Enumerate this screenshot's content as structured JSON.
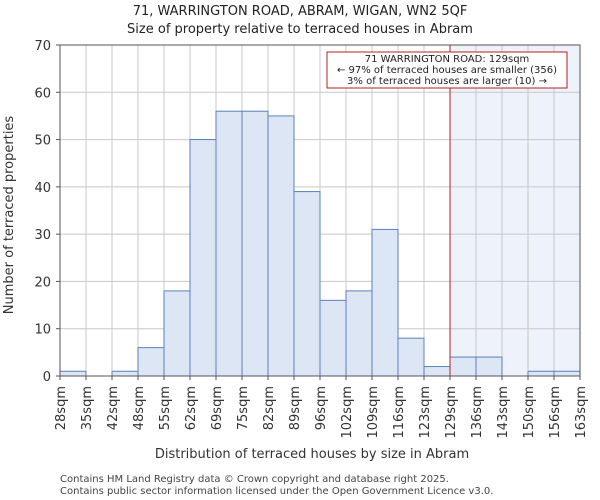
{
  "chart_data": {
    "type": "bar",
    "title": [
      "71, WARRINGTON ROAD, ABRAM, WIGAN, WN2 5QF",
      "Size of property relative to terraced houses in Abram"
    ],
    "xlabel": "Distribution of terraced houses by size in Abram",
    "ylabel": "Number of terraced properties",
    "ylim": [
      0,
      70
    ],
    "yticks": [
      0,
      10,
      20,
      30,
      40,
      50,
      60,
      70
    ],
    "xtick_labels": [
      "28sqm",
      "35sqm",
      "42sqm",
      "48sqm",
      "55sqm",
      "62sqm",
      "69sqm",
      "75sqm",
      "82sqm",
      "89sqm",
      "96sqm",
      "102sqm",
      "109sqm",
      "116sqm",
      "123sqm",
      "129sqm",
      "136sqm",
      "143sqm",
      "150sqm",
      "156sqm",
      "163sqm"
    ],
    "values": [
      1,
      0,
      1,
      6,
      18,
      50,
      56,
      56,
      55,
      39,
      16,
      18,
      31,
      8,
      2,
      4,
      4,
      0,
      1,
      1
    ],
    "marker": {
      "bin_index": 15,
      "label": "129sqm"
    },
    "annotation": [
      "71 WARRINGTON ROAD: 129sqm",
      "← 97% of terraced houses are smaller (356)",
      "3% of terraced houses are larger (10) →"
    ],
    "colors": {
      "bar_fill": "#dce6f4",
      "bar_stroke": "#5b7fbf",
      "highlight_fill": "#eef2fa",
      "marker_line": "#b22222",
      "grid": "#c8c8c8"
    }
  },
  "footer": [
    "Contains HM Land Registry data © Crown copyright and database right 2025.",
    "Contains public sector information licensed under the Open Government Licence v3.0."
  ]
}
